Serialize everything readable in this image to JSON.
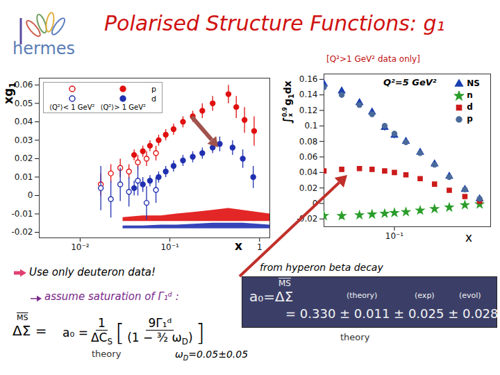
{
  "text": {
    "logo": "hermes",
    "title": "Polarised Structure Functions: g₁",
    "point1": "Use only deuteron data!",
    "point2": "assume saturation of Γ₁ᵈ :",
    "ms": "MS",
    "delta_sigma": "ΔΣ =",
    "formula": {
      "lhs": "a₀ =",
      "num": "1",
      "den": [
        "ΔC",
        "S",
        ""
      ],
      "inner_num": "9Γ₁ᵈ",
      "inner_den": [
        "(1 − ³⁄₂ ω",
        "D",
        ")"
      ]
    },
    "formula_note": "theory",
    "omega": [
      "ω",
      "D",
      "=0.05±0.05"
    ],
    "box_intro": "from hyperon beta decay",
    "box_lhs": "a₀=",
    "box_ms": "MS",
    "box_delta": "ΔΣ",
    "box_columns": [
      "(theory)",
      "(exp)",
      "(evol)"
    ],
    "box_result": "= 0.330 ± 0.011 ± 0.025 ± 0.028",
    "box_note": "theory"
  },
  "chart_data": [
    {
      "type": "scatter",
      "log": "x",
      "xlabel": "x",
      "ylabel": [
        "xg",
        "1",
        ""
      ],
      "xlim": [
        0.0035,
        1.3
      ],
      "xticks": [
        {
          "value": 0.01,
          "label": "10⁻²"
        },
        {
          "value": 0.1,
          "label": "10⁻¹"
        },
        1
      ],
      "ylim": [
        -0.023,
        0.0637
      ],
      "yticks": [
        -0.02,
        -0.01,
        0,
        0.01,
        0.02,
        0.03,
        0.04,
        0.05,
        0.06
      ],
      "legend": "top-left",
      "legend_columns": [
        "⟨Q²⟩< 1 GeV²",
        "⟨Q²⟩> 1 GeV²"
      ],
      "series": [
        {
          "name": "p",
          "color": "#e01010",
          "marker": "open circle",
          "x": [
            0.017,
            0.022,
            0.028,
            0.035,
            0.044,
            0.055,
            0.07
          ],
          "values": [
            0.006,
            0.012,
            0.015,
            0.013,
            0.018,
            0.02,
            0.023
          ],
          "errors": [
            0.006,
            0.005,
            0.005,
            0.004,
            0.004,
            0.004,
            0.004
          ]
        },
        {
          "name": "p",
          "color": "#e01010",
          "marker": "circle",
          "x": [
            0.04,
            0.05,
            0.06,
            0.075,
            0.09,
            0.11,
            0.14,
            0.18,
            0.23,
            0.3,
            0.45,
            0.55,
            0.68,
            0.87
          ],
          "values": [
            0.022,
            0.024,
            0.027,
            0.03,
            0.033,
            0.036,
            0.04,
            0.043,
            0.046,
            0.05,
            0.055,
            0.048,
            0.041,
            0.035
          ],
          "errors": [
            0.003,
            0.003,
            0.003,
            0.003,
            0.003,
            0.003,
            0.003,
            0.003,
            0.004,
            0.004,
            0.005,
            0.006,
            0.007,
            0.008
          ]
        },
        {
          "name": "d",
          "color": "#2030b0",
          "marker": "open circle",
          "x": [
            0.017,
            0.022,
            0.028,
            0.035,
            0.044,
            0.055,
            0.07
          ],
          "values": [
            0.004,
            -0.002,
            0.006,
            0.002,
            0.008,
            -0.004,
            0.003
          ],
          "errors": [
            0.012,
            0.01,
            0.009,
            0.008,
            0.008,
            0.009,
            0.007
          ]
        },
        {
          "name": "d",
          "color": "#2030b0",
          "marker": "circle",
          "x": [
            0.04,
            0.05,
            0.06,
            0.075,
            0.09,
            0.11,
            0.14,
            0.18,
            0.23,
            0.3,
            0.36,
            0.5,
            0.65,
            0.85
          ],
          "values": [
            0.004,
            0.006,
            0.008,
            0.01,
            0.013,
            0.016,
            0.019,
            0.021,
            0.023,
            0.026,
            0.028,
            0.026,
            0.02,
            0.01
          ],
          "errors": [
            0.004,
            0.004,
            0.003,
            0.003,
            0.003,
            0.003,
            0.003,
            0.003,
            0.003,
            0.003,
            0.004,
            0.004,
            0.005,
            0.006
          ]
        }
      ],
      "bands": [
        {
          "name": "p",
          "color": "#e01010",
          "x": [
            0.03,
            0.05,
            0.08,
            0.12,
            0.2,
            0.3,
            0.45,
            0.65,
            0.9,
            1.3
          ],
          "low": [
            -0.014,
            -0.014,
            -0.014,
            -0.014,
            -0.014,
            -0.014,
            -0.014,
            -0.014,
            -0.014,
            -0.014
          ],
          "high": [
            -0.012,
            -0.011,
            -0.011,
            -0.01,
            -0.009,
            -0.008,
            -0.007,
            -0.008,
            -0.009,
            -0.01
          ]
        },
        {
          "name": "d",
          "color": "#2030b0",
          "x": [
            0.03,
            0.05,
            0.08,
            0.12,
            0.2,
            0.3,
            0.45,
            0.65,
            0.9,
            1.3
          ],
          "low": [
            -0.018,
            -0.018,
            -0.018,
            -0.018,
            -0.018,
            -0.018,
            -0.018,
            -0.018,
            -0.018,
            -0.018
          ],
          "high": [
            -0.0165,
            -0.0165,
            -0.016,
            -0.016,
            -0.0155,
            -0.015,
            -0.015,
            -0.015,
            -0.0155,
            -0.016
          ]
        }
      ]
    },
    {
      "type": "scatter",
      "log": "x",
      "title": "[Q²>1 GeV² data only]",
      "annotation": "Q²=5 GeV²",
      "xlabel": "x",
      "ylabel": {
        "integral": "∫",
        "lower": "x",
        "upper": "0.9",
        "body": [
          "g",
          "1",
          "dx"
        ]
      },
      "xlim": [
        0.02,
        0.9
      ],
      "xticks": [
        {
          "value": 0.1,
          "label": "10⁻¹"
        }
      ],
      "ylim": [
        -0.03,
        0.167
      ],
      "yticks": [
        -0.02,
        0,
        0.02,
        0.04,
        0.06,
        0.08,
        0.1,
        0.12,
        0.14,
        0.16
      ],
      "legend": "top-right",
      "series": [
        {
          "name": "NS",
          "color": "#1a3fb0",
          "marker": "triangle",
          "x": [
            0.02,
            0.03,
            0.045,
            0.06,
            0.08,
            0.1,
            0.13,
            0.18,
            0.25,
            0.35,
            0.5,
            0.7
          ],
          "values": [
            0.154,
            0.145,
            0.13,
            0.118,
            0.098,
            0.088,
            0.08,
            0.066,
            0.051,
            0.035,
            0.018,
            0.006
          ],
          "errors": [
            0.006,
            0.005,
            0.005,
            0.004,
            0.004,
            0.004,
            0.003,
            0.003,
            0.003,
            0.002,
            0.002,
            0.001
          ]
        },
        {
          "name": "n",
          "color": "#2a9d2a",
          "marker": "star",
          "x": [
            0.02,
            0.03,
            0.045,
            0.06,
            0.08,
            0.1,
            0.13,
            0.18,
            0.25,
            0.35,
            0.5,
            0.7
          ],
          "values": [
            -0.016,
            -0.016,
            -0.015,
            -0.014,
            -0.013,
            -0.012,
            -0.011,
            -0.009,
            -0.007,
            -0.005,
            -0.002,
            -0.001
          ]
        },
        {
          "name": "d",
          "color": "#cc1a1a",
          "marker": "square",
          "x": [
            0.02,
            0.03,
            0.045,
            0.06,
            0.08,
            0.1,
            0.13,
            0.18,
            0.25,
            0.35,
            0.5,
            0.7
          ],
          "values": [
            0.042,
            0.044,
            0.045,
            0.044,
            0.042,
            0.04,
            0.037,
            0.032,
            0.025,
            0.017,
            0.009,
            0.003
          ]
        },
        {
          "name": "p",
          "color": "#4a6a9a",
          "marker": "circle",
          "x": [
            0.02,
            0.03,
            0.045,
            0.06,
            0.08,
            0.1,
            0.13,
            0.18,
            0.25,
            0.35,
            0.5,
            0.7
          ],
          "values": [
            0.15,
            0.14,
            0.127,
            0.115,
            0.1,
            0.09,
            0.079,
            0.065,
            0.05,
            0.034,
            0.018,
            0.006
          ],
          "errors": [
            0.004,
            0.004,
            0.003,
            0.003,
            0.003,
            0.003,
            0.002,
            0.002,
            0.002,
            0.002,
            0.001,
            0.001
          ]
        }
      ]
    }
  ]
}
